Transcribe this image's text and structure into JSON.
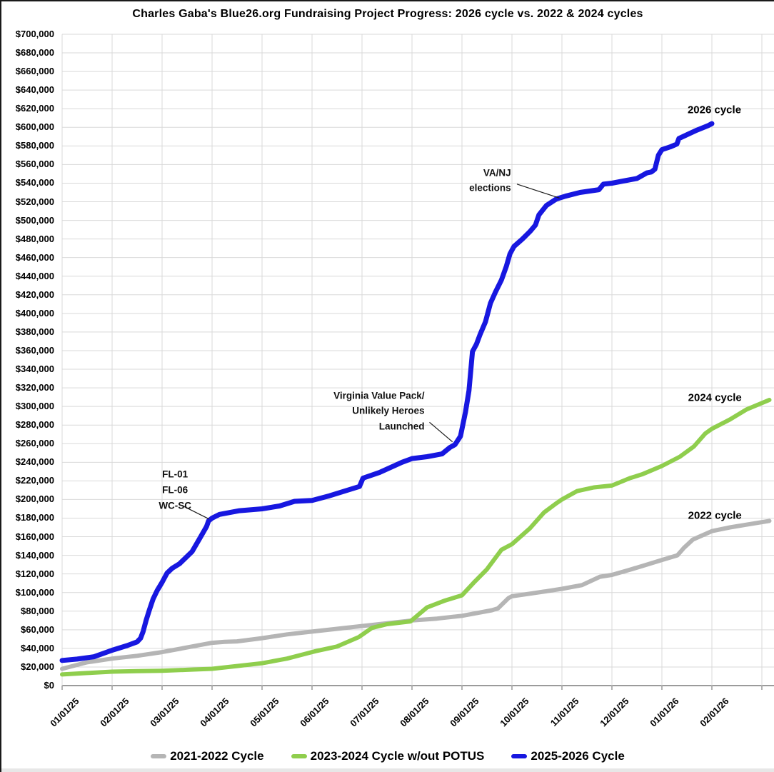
{
  "chart_data": {
    "type": "line",
    "title": "Charles Gaba's Blue26.org Fundraising Project Progress: 2026 cycle vs. 2022 & 2024 cycles",
    "x_unit": "months_since_01/01/25",
    "x_axis": {
      "tick_labels": [
        "01/01/25",
        "02/01/25",
        "03/01/25",
        "04/01/25",
        "05/01/25",
        "06/01/25",
        "07/01/25",
        "08/01/25",
        "09/01/25",
        "10/01/25",
        "11/01/25",
        "12/01/25",
        "01/01/26",
        "02/01/26"
      ],
      "gridline_count": 15,
      "x_max_months": 14.3
    },
    "y_axis": {
      "min": 0,
      "max": 700000,
      "step": 20000,
      "tick_labels": [
        "$700,000",
        "$680,000",
        "$660,000",
        "$640,000",
        "$620,000",
        "$600,000",
        "$580,000",
        "$560,000",
        "$540,000",
        "$520,000",
        "$500,000",
        "$480,000",
        "$460,000",
        "$440,000",
        "$420,000",
        "$400,000",
        "$380,000",
        "$360,000",
        "$340,000",
        "$320,000",
        "$300,000",
        "$280,000",
        "$260,000",
        "$240,000",
        "$220,000",
        "$200,000",
        "$180,000",
        "$160,000",
        "$140,000",
        "$120,000",
        "$100,000",
        "$80,000",
        "$60,000",
        "$40,000",
        "$20,000",
        "$0"
      ]
    },
    "grid_color": "#d9d9d9",
    "axis_color": "#9b9b9b",
    "legend_position": "bottom",
    "series": [
      {
        "name": "2021-2022 Cycle",
        "end_label": "2022 cycle",
        "end_label_pos": [
          13.06,
          183000
        ],
        "color": "#b5b5b5",
        "stroke_width": 6,
        "points": [
          [
            0,
            18000
          ],
          [
            0.5,
            25000
          ],
          [
            1,
            29000
          ],
          [
            1.5,
            32000
          ],
          [
            2,
            36000
          ],
          [
            2.5,
            41000
          ],
          [
            3,
            46000
          ],
          [
            3.25,
            47000
          ],
          [
            3.5,
            47500
          ],
          [
            4,
            51000
          ],
          [
            4.5,
            55000
          ],
          [
            5,
            58000
          ],
          [
            5.5,
            61000
          ],
          [
            6,
            64000
          ],
          [
            6.5,
            67000
          ],
          [
            7,
            70000
          ],
          [
            7.5,
            72000
          ],
          [
            8,
            75000
          ],
          [
            8.6,
            81000
          ],
          [
            8.72,
            83000
          ],
          [
            8.93,
            94000
          ],
          [
            9,
            96000
          ],
          [
            9.26,
            98000
          ],
          [
            9.64,
            101000
          ],
          [
            10,
            104000
          ],
          [
            10.4,
            108000
          ],
          [
            10.76,
            117000
          ],
          [
            11,
            119000
          ],
          [
            11.33,
            124000
          ],
          [
            11.64,
            129000
          ],
          [
            12,
            135000
          ],
          [
            12.31,
            140000
          ],
          [
            12.44,
            148000
          ],
          [
            12.62,
            157000
          ],
          [
            13,
            166000
          ],
          [
            13.36,
            170000
          ],
          [
            13.7,
            173000
          ],
          [
            14.15,
            177000
          ]
        ]
      },
      {
        "name": "2023-2024 Cycle w/out POTUS",
        "end_label": "2024 cycle",
        "end_label_pos": [
          13.06,
          309000
        ],
        "color": "#8fce4d",
        "stroke_width": 6,
        "points": [
          [
            0,
            12000
          ],
          [
            0.5,
            13500
          ],
          [
            1,
            15000
          ],
          [
            1.5,
            15500
          ],
          [
            2,
            16000
          ],
          [
            2.5,
            17000
          ],
          [
            3,
            18000
          ],
          [
            3.5,
            21000
          ],
          [
            4,
            24000
          ],
          [
            4.5,
            29000
          ],
          [
            4.93,
            35000
          ],
          [
            5.07,
            37000
          ],
          [
            5.5,
            42000
          ],
          [
            5.93,
            52000
          ],
          [
            6.2,
            62000
          ],
          [
            6.5,
            66000
          ],
          [
            6.97,
            69000
          ],
          [
            7.3,
            84000
          ],
          [
            7.64,
            91000
          ],
          [
            8,
            97000
          ],
          [
            8.26,
            112000
          ],
          [
            8.5,
            125000
          ],
          [
            8.79,
            146000
          ],
          [
            9,
            152000
          ],
          [
            9.36,
            169000
          ],
          [
            9.64,
            186000
          ],
          [
            9.89,
            196000
          ],
          [
            10,
            200000
          ],
          [
            10.3,
            209000
          ],
          [
            10.64,
            213000
          ],
          [
            11,
            215000
          ],
          [
            11.36,
            223000
          ],
          [
            11.6,
            227000
          ],
          [
            12,
            236000
          ],
          [
            12.36,
            246000
          ],
          [
            12.64,
            257000
          ],
          [
            12.87,
            271000
          ],
          [
            13,
            276000
          ],
          [
            13.36,
            286000
          ],
          [
            13.7,
            297000
          ],
          [
            14.15,
            307000
          ]
        ]
      },
      {
        "name": "2025-2026 Cycle",
        "end_label": "2026 cycle",
        "end_label_pos": [
          13.05,
          619000
        ],
        "color": "#1717e0",
        "stroke_width": 7,
        "points": [
          [
            0,
            27000
          ],
          [
            0.3,
            28500
          ],
          [
            0.64,
            31000
          ],
          [
            1,
            38000
          ],
          [
            1.3,
            43000
          ],
          [
            1.5,
            47000
          ],
          [
            1.57,
            51000
          ],
          [
            1.62,
            58000
          ],
          [
            1.68,
            70000
          ],
          [
            1.75,
            82000
          ],
          [
            1.82,
            93000
          ],
          [
            1.9,
            102000
          ],
          [
            2,
            111000
          ],
          [
            2.1,
            121000
          ],
          [
            2.2,
            126000
          ],
          [
            2.35,
            131000
          ],
          [
            2.6,
            144000
          ],
          [
            2.74,
            157000
          ],
          [
            2.89,
            171000
          ],
          [
            2.93,
            177000
          ],
          [
            3,
            180000
          ],
          [
            3.15,
            184000
          ],
          [
            3.55,
            188000
          ],
          [
            4,
            190000
          ],
          [
            4.35,
            193000
          ],
          [
            4.65,
            198000
          ],
          [
            5,
            199000
          ],
          [
            5.35,
            204000
          ],
          [
            5.65,
            209000
          ],
          [
            5.95,
            214000
          ],
          [
            6.02,
            223000
          ],
          [
            6.35,
            229000
          ],
          [
            6.8,
            240000
          ],
          [
            7,
            244000
          ],
          [
            7.3,
            246000
          ],
          [
            7.6,
            249000
          ],
          [
            7.76,
            256000
          ],
          [
            7.86,
            259000
          ],
          [
            7.97,
            268000
          ],
          [
            8.07,
            294000
          ],
          [
            8.14,
            317000
          ],
          [
            8.21,
            359000
          ],
          [
            8.29,
            367000
          ],
          [
            8.36,
            377000
          ],
          [
            8.47,
            391000
          ],
          [
            8.57,
            411000
          ],
          [
            8.67,
            423000
          ],
          [
            8.79,
            436000
          ],
          [
            8.89,
            451000
          ],
          [
            8.96,
            464000
          ],
          [
            9.04,
            472000
          ],
          [
            9.21,
            480000
          ],
          [
            9.36,
            488000
          ],
          [
            9.47,
            495000
          ],
          [
            9.54,
            506000
          ],
          [
            9.69,
            516000
          ],
          [
            9.89,
            523000
          ],
          [
            10.07,
            526000
          ],
          [
            10.36,
            530000
          ],
          [
            10.74,
            533000
          ],
          [
            10.83,
            539000
          ],
          [
            11,
            540000
          ],
          [
            11.3,
            543000
          ],
          [
            11.5,
            545000
          ],
          [
            11.7,
            551000
          ],
          [
            11.79,
            552000
          ],
          [
            11.86,
            555000
          ],
          [
            11.93,
            570000
          ],
          [
            12,
            576000
          ],
          [
            12.17,
            579000
          ],
          [
            12.3,
            582000
          ],
          [
            12.34,
            588000
          ],
          [
            12.5,
            592000
          ],
          [
            12.7,
            597000
          ],
          [
            12.93,
            602000
          ],
          [
            13,
            604000
          ]
        ]
      }
    ],
    "annotations": [
      {
        "lines": [
          "FL-01",
          "FL-06",
          "WC-SC"
        ],
        "align": "center",
        "pos": [
          2.26,
          210000
        ],
        "leader": [
          [
            2.42,
            193000
          ],
          [
            2.94,
            179000
          ]
        ]
      },
      {
        "lines": [
          "Virginia Value Pack/",
          "Unlikely Heroes",
          "Launched"
        ],
        "align": "right",
        "pos": [
          7.25,
          295000
        ],
        "leader": [
          [
            7.35,
            283000
          ],
          [
            7.81,
            262000
          ]
        ]
      },
      {
        "lines": [
          "VA/NJ",
          "elections"
        ],
        "align": "right",
        "pos": [
          8.98,
          543000
        ],
        "leader": [
          [
            9.1,
            539000
          ],
          [
            9.95,
            524000
          ]
        ]
      }
    ]
  }
}
